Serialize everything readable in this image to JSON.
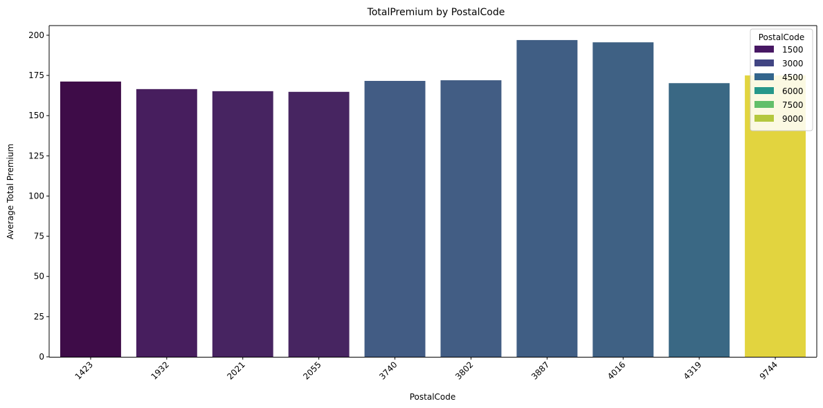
{
  "chart_data": {
    "type": "bar",
    "title": "TotalPremium by PostalCode",
    "xlabel": "PostalCode",
    "ylabel": "Average Total Premium",
    "categories": [
      "1423",
      "1932",
      "2021",
      "2055",
      "3740",
      "3802",
      "3887",
      "4016",
      "4319",
      "9744"
    ],
    "values": [
      171.2,
      166.5,
      165.2,
      164.8,
      171.6,
      172.0,
      197.0,
      195.6,
      170.2,
      175.0
    ],
    "colors": [
      "#3e0c48",
      "#471e5e",
      "#472461",
      "#472561",
      "#425c84",
      "#425d84",
      "#405e84",
      "#3f6184",
      "#3a6884",
      "#e2d43f"
    ],
    "ylim": [
      0,
      206
    ],
    "yticks": [
      0,
      25,
      50,
      75,
      100,
      125,
      150,
      175,
      200
    ],
    "grid": false,
    "legend": {
      "title": "PostalCode",
      "placement": "top-right",
      "entries": [
        {
          "label": "1500",
          "color": "#471763"
        },
        {
          "label": "3000",
          "color": "#414583"
        },
        {
          "label": "4500",
          "color": "#33658c"
        },
        {
          "label": "6000",
          "color": "#26978a"
        },
        {
          "label": "7500",
          "color": "#62bf6a"
        },
        {
          "label": "9000",
          "color": "#b4c83e"
        }
      ]
    }
  }
}
